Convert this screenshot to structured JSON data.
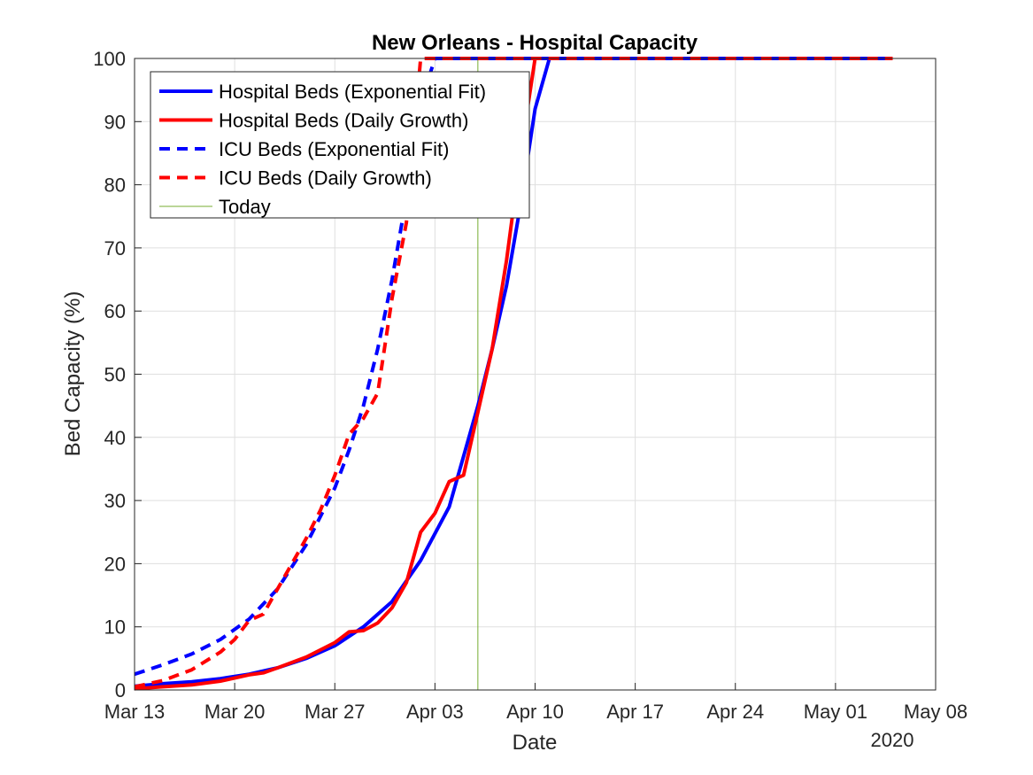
{
  "chart_data": {
    "type": "line",
    "title": "New Orleans - Hospital Capacity",
    "xlabel": "Date",
    "ylabel": "Bed Capacity (%)",
    "year_label": "2020",
    "x_ticks": [
      "Mar 13",
      "Mar 20",
      "Mar 27",
      "Apr 03",
      "Apr 10",
      "Apr 17",
      "Apr 24",
      "May 01",
      "May 08"
    ],
    "xlim": [
      "2020-03-13",
      "2020-05-08"
    ],
    "ylim": [
      0,
      100
    ],
    "y_ticks": [
      0,
      10,
      20,
      30,
      40,
      50,
      60,
      70,
      80,
      90,
      100
    ],
    "grid": true,
    "legend_position": "top-left",
    "today": "2020-04-06",
    "series": [
      {
        "name": "Hospital Beds (Exponential Fit)",
        "color": "#0000ff",
        "style": "solid",
        "points": [
          [
            "2020-03-13",
            0.6
          ],
          [
            "2020-03-15",
            1.0
          ],
          [
            "2020-03-17",
            1.3
          ],
          [
            "2020-03-19",
            1.8
          ],
          [
            "2020-03-21",
            2.5
          ],
          [
            "2020-03-23",
            3.5
          ],
          [
            "2020-03-25",
            5.0
          ],
          [
            "2020-03-27",
            7.0
          ],
          [
            "2020-03-29",
            10.0
          ],
          [
            "2020-03-31",
            14.0
          ],
          [
            "2020-04-02",
            20.5
          ],
          [
            "2020-04-04",
            29.0
          ],
          [
            "2020-04-05",
            37.0
          ],
          [
            "2020-04-06",
            45.0
          ],
          [
            "2020-04-07",
            54.0
          ],
          [
            "2020-04-08",
            64.0
          ],
          [
            "2020-04-09",
            77.0
          ],
          [
            "2020-04-10",
            92.0
          ],
          [
            "2020-04-11",
            100.0
          ],
          [
            "2020-05-05",
            100.0
          ]
        ]
      },
      {
        "name": "Hospital Beds (Daily Growth)",
        "color": "#ff0000",
        "style": "solid",
        "points": [
          [
            "2020-03-13",
            0.2
          ],
          [
            "2020-03-15",
            0.5
          ],
          [
            "2020-03-17",
            0.8
          ],
          [
            "2020-03-19",
            1.4
          ],
          [
            "2020-03-21",
            2.4
          ],
          [
            "2020-03-22",
            2.7
          ],
          [
            "2020-03-23",
            3.5
          ],
          [
            "2020-03-25",
            5.2
          ],
          [
            "2020-03-27",
            7.5
          ],
          [
            "2020-03-28",
            9.2
          ],
          [
            "2020-03-29",
            9.4
          ],
          [
            "2020-03-30",
            10.6
          ],
          [
            "2020-03-31",
            13.0
          ],
          [
            "2020-04-01",
            17.0
          ],
          [
            "2020-04-02",
            25.0
          ],
          [
            "2020-04-03",
            28.0
          ],
          [
            "2020-04-04",
            33.0
          ],
          [
            "2020-04-05",
            34.0
          ],
          [
            "2020-04-06",
            44.0
          ],
          [
            "2020-04-07",
            54.0
          ],
          [
            "2020-04-08",
            68.0
          ],
          [
            "2020-04-09",
            85.0
          ],
          [
            "2020-04-10",
            100.0
          ],
          [
            "2020-05-05",
            100.0
          ]
        ]
      },
      {
        "name": "ICU Beds (Exponential Fit)",
        "color": "#0000ff",
        "style": "dashed",
        "points": [
          [
            "2020-03-13",
            2.5
          ],
          [
            "2020-03-15",
            4.0
          ],
          [
            "2020-03-17",
            5.7
          ],
          [
            "2020-03-19",
            8.0
          ],
          [
            "2020-03-21",
            11.2
          ],
          [
            "2020-03-23",
            16.0
          ],
          [
            "2020-03-25",
            23.0
          ],
          [
            "2020-03-27",
            32.0
          ],
          [
            "2020-03-28",
            38.0
          ],
          [
            "2020-03-29",
            45.0
          ],
          [
            "2020-03-30",
            54.0
          ],
          [
            "2020-03-31",
            65.0
          ],
          [
            "2020-04-01",
            78.0
          ],
          [
            "2020-04-02",
            93.0
          ],
          [
            "2020-04-03",
            100.0
          ],
          [
            "2020-05-05",
            100.0
          ]
        ]
      },
      {
        "name": "ICU Beds (Daily Growth)",
        "color": "#ff0000",
        "style": "dashed",
        "points": [
          [
            "2020-03-13",
            0.5
          ],
          [
            "2020-03-15",
            1.5
          ],
          [
            "2020-03-17",
            3.2
          ],
          [
            "2020-03-19",
            6.0
          ],
          [
            "2020-03-20",
            8.0
          ],
          [
            "2020-03-21",
            11.0
          ],
          [
            "2020-03-22",
            12.0
          ],
          [
            "2020-03-23",
            16.0
          ],
          [
            "2020-03-25",
            24.0
          ],
          [
            "2020-03-26",
            28.5
          ],
          [
            "2020-03-27",
            34.0
          ],
          [
            "2020-03-28",
            40.5
          ],
          [
            "2020-03-29",
            43.0
          ],
          [
            "2020-03-30",
            47.0
          ],
          [
            "2020-03-31",
            62.0
          ],
          [
            "2020-04-01",
            74.0
          ],
          [
            "2020-04-02",
            100.0
          ],
          [
            "2020-05-05",
            100.0
          ]
        ]
      },
      {
        "name": "Today",
        "color": "#77ac30",
        "style": "thin",
        "points": []
      }
    ]
  }
}
